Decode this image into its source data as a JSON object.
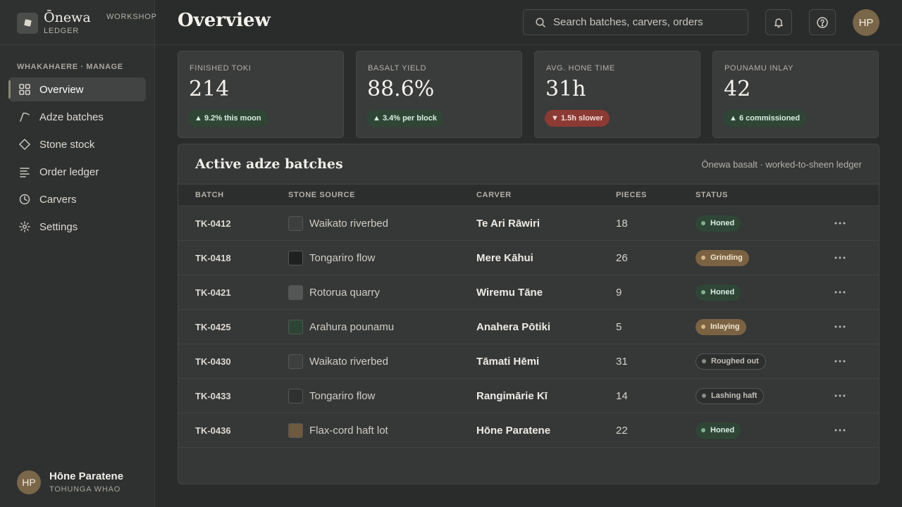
{
  "brand": {
    "name": "Ōnewa",
    "tag_line1": "WORKSHOP",
    "tag_line2": "LEDGER"
  },
  "sidebar": {
    "section_label": "WHAKAHAERE · MANAGE",
    "items": [
      {
        "label": "Overview",
        "icon": "grid-icon",
        "active": true
      },
      {
        "label": "Adze batches",
        "icon": "adze-icon",
        "active": false
      },
      {
        "label": "Stone stock",
        "icon": "diamond-icon",
        "active": false
      },
      {
        "label": "Order ledger",
        "icon": "list-icon",
        "active": false
      },
      {
        "label": "Carvers",
        "icon": "clock-icon",
        "active": false
      },
      {
        "label": "Settings",
        "icon": "gear-icon",
        "active": false
      }
    ],
    "user": {
      "initials": "HP",
      "name": "Hōne Paratene",
      "role": "TOHUNGA WHAO"
    }
  },
  "header": {
    "title": "Overview",
    "search_placeholder": "Search batches, carvers, orders",
    "avatar_initials": "HP"
  },
  "kpis": [
    {
      "label": "FINISHED TOKI",
      "value": "214",
      "delta": "▲ 9.2% this moon",
      "trend": "up"
    },
    {
      "label": "BASALT YIELD",
      "value": "88.6%",
      "delta": "▲ 3.4% per block",
      "trend": "up"
    },
    {
      "label": "AVG. HONE TIME",
      "value": "31h",
      "delta": "▼ 1.5h slower",
      "trend": "down"
    },
    {
      "label": "POUNAMU INLAY",
      "value": "42",
      "delta": "▲ 6 commissioned",
      "trend": "up"
    }
  ],
  "batches_panel": {
    "title": "Active adze batches",
    "subtitle": "Ōnewa basalt · worked-to-sheen ledger",
    "columns": [
      "BATCH",
      "STONE SOURCE",
      "CARVER",
      "PIECES",
      "STATUS"
    ],
    "rows": [
      {
        "batch": "TK-0412",
        "source": "Waikato riverbed",
        "swatch": "#3d3e3e",
        "carver": "Te Ari Rāwiri",
        "pieces": "18",
        "status": "Honed",
        "status_kind": "honed"
      },
      {
        "batch": "TK-0418",
        "source": "Tongariro flow",
        "swatch": "#1f2020",
        "carver": "Mere Kāhui",
        "pieces": "26",
        "status": "Grinding",
        "status_kind": "grinding"
      },
      {
        "batch": "TK-0421",
        "source": "Rotorua quarry",
        "swatch": "#545555",
        "carver": "Wiremu Tāne",
        "pieces": "9",
        "status": "Honed",
        "status_kind": "honed"
      },
      {
        "batch": "TK-0425",
        "source": "Arahura pounamu",
        "swatch": "#2c4535",
        "carver": "Anahera Pōtiki",
        "pieces": "5",
        "status": "Inlaying",
        "status_kind": "grinding"
      },
      {
        "batch": "TK-0430",
        "source": "Waikato riverbed",
        "swatch": "#3d3e3e",
        "carver": "Tāmati Hēmi",
        "pieces": "31",
        "status": "Roughed out",
        "status_kind": "neutral"
      },
      {
        "batch": "TK-0433",
        "source": "Tongariro flow",
        "swatch": "#2f3030",
        "carver": "Rangimārie Kī",
        "pieces": "14",
        "status": "Lashing haft",
        "status_kind": "neutral"
      },
      {
        "batch": "TK-0436",
        "source": "Flax-cord haft lot",
        "swatch": "#6e5a3e",
        "carver": "Hōne Paratene",
        "pieces": "22",
        "status": "Honed",
        "status_kind": "honed"
      }
    ]
  }
}
